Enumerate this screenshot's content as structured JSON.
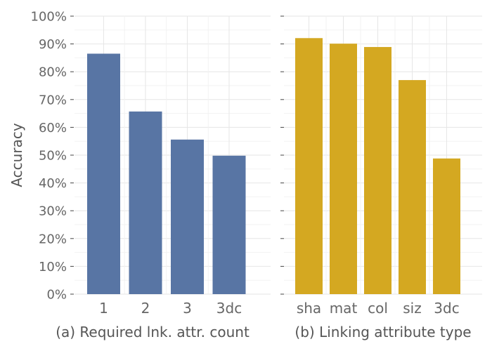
{
  "chart_data": [
    {
      "type": "bar",
      "categories": [
        "1",
        "2",
        "3",
        "3dc"
      ],
      "values": [
        86.5,
        65.7,
        55.6,
        49.8
      ],
      "color": "#5875a4",
      "xlabel": "(a) Required lnk. attr. count",
      "ylabel": "Accuracy",
      "ylim": [
        0,
        100
      ],
      "yticks": [
        "0%",
        "10%",
        "20%",
        "30%",
        "40%",
        "50%",
        "60%",
        "70%",
        "80%",
        "90%",
        "100%"
      ],
      "grid": true
    },
    {
      "type": "bar",
      "categories": [
        "sha",
        "mat",
        "col",
        "siz",
        "3dc"
      ],
      "values": [
        92.1,
        90.1,
        88.9,
        77.0,
        48.8
      ],
      "color": "#d4a821",
      "xlabel": "(b) Linking attribute type",
      "ylabel": "",
      "ylim": [
        0,
        100
      ],
      "grid": true
    }
  ]
}
